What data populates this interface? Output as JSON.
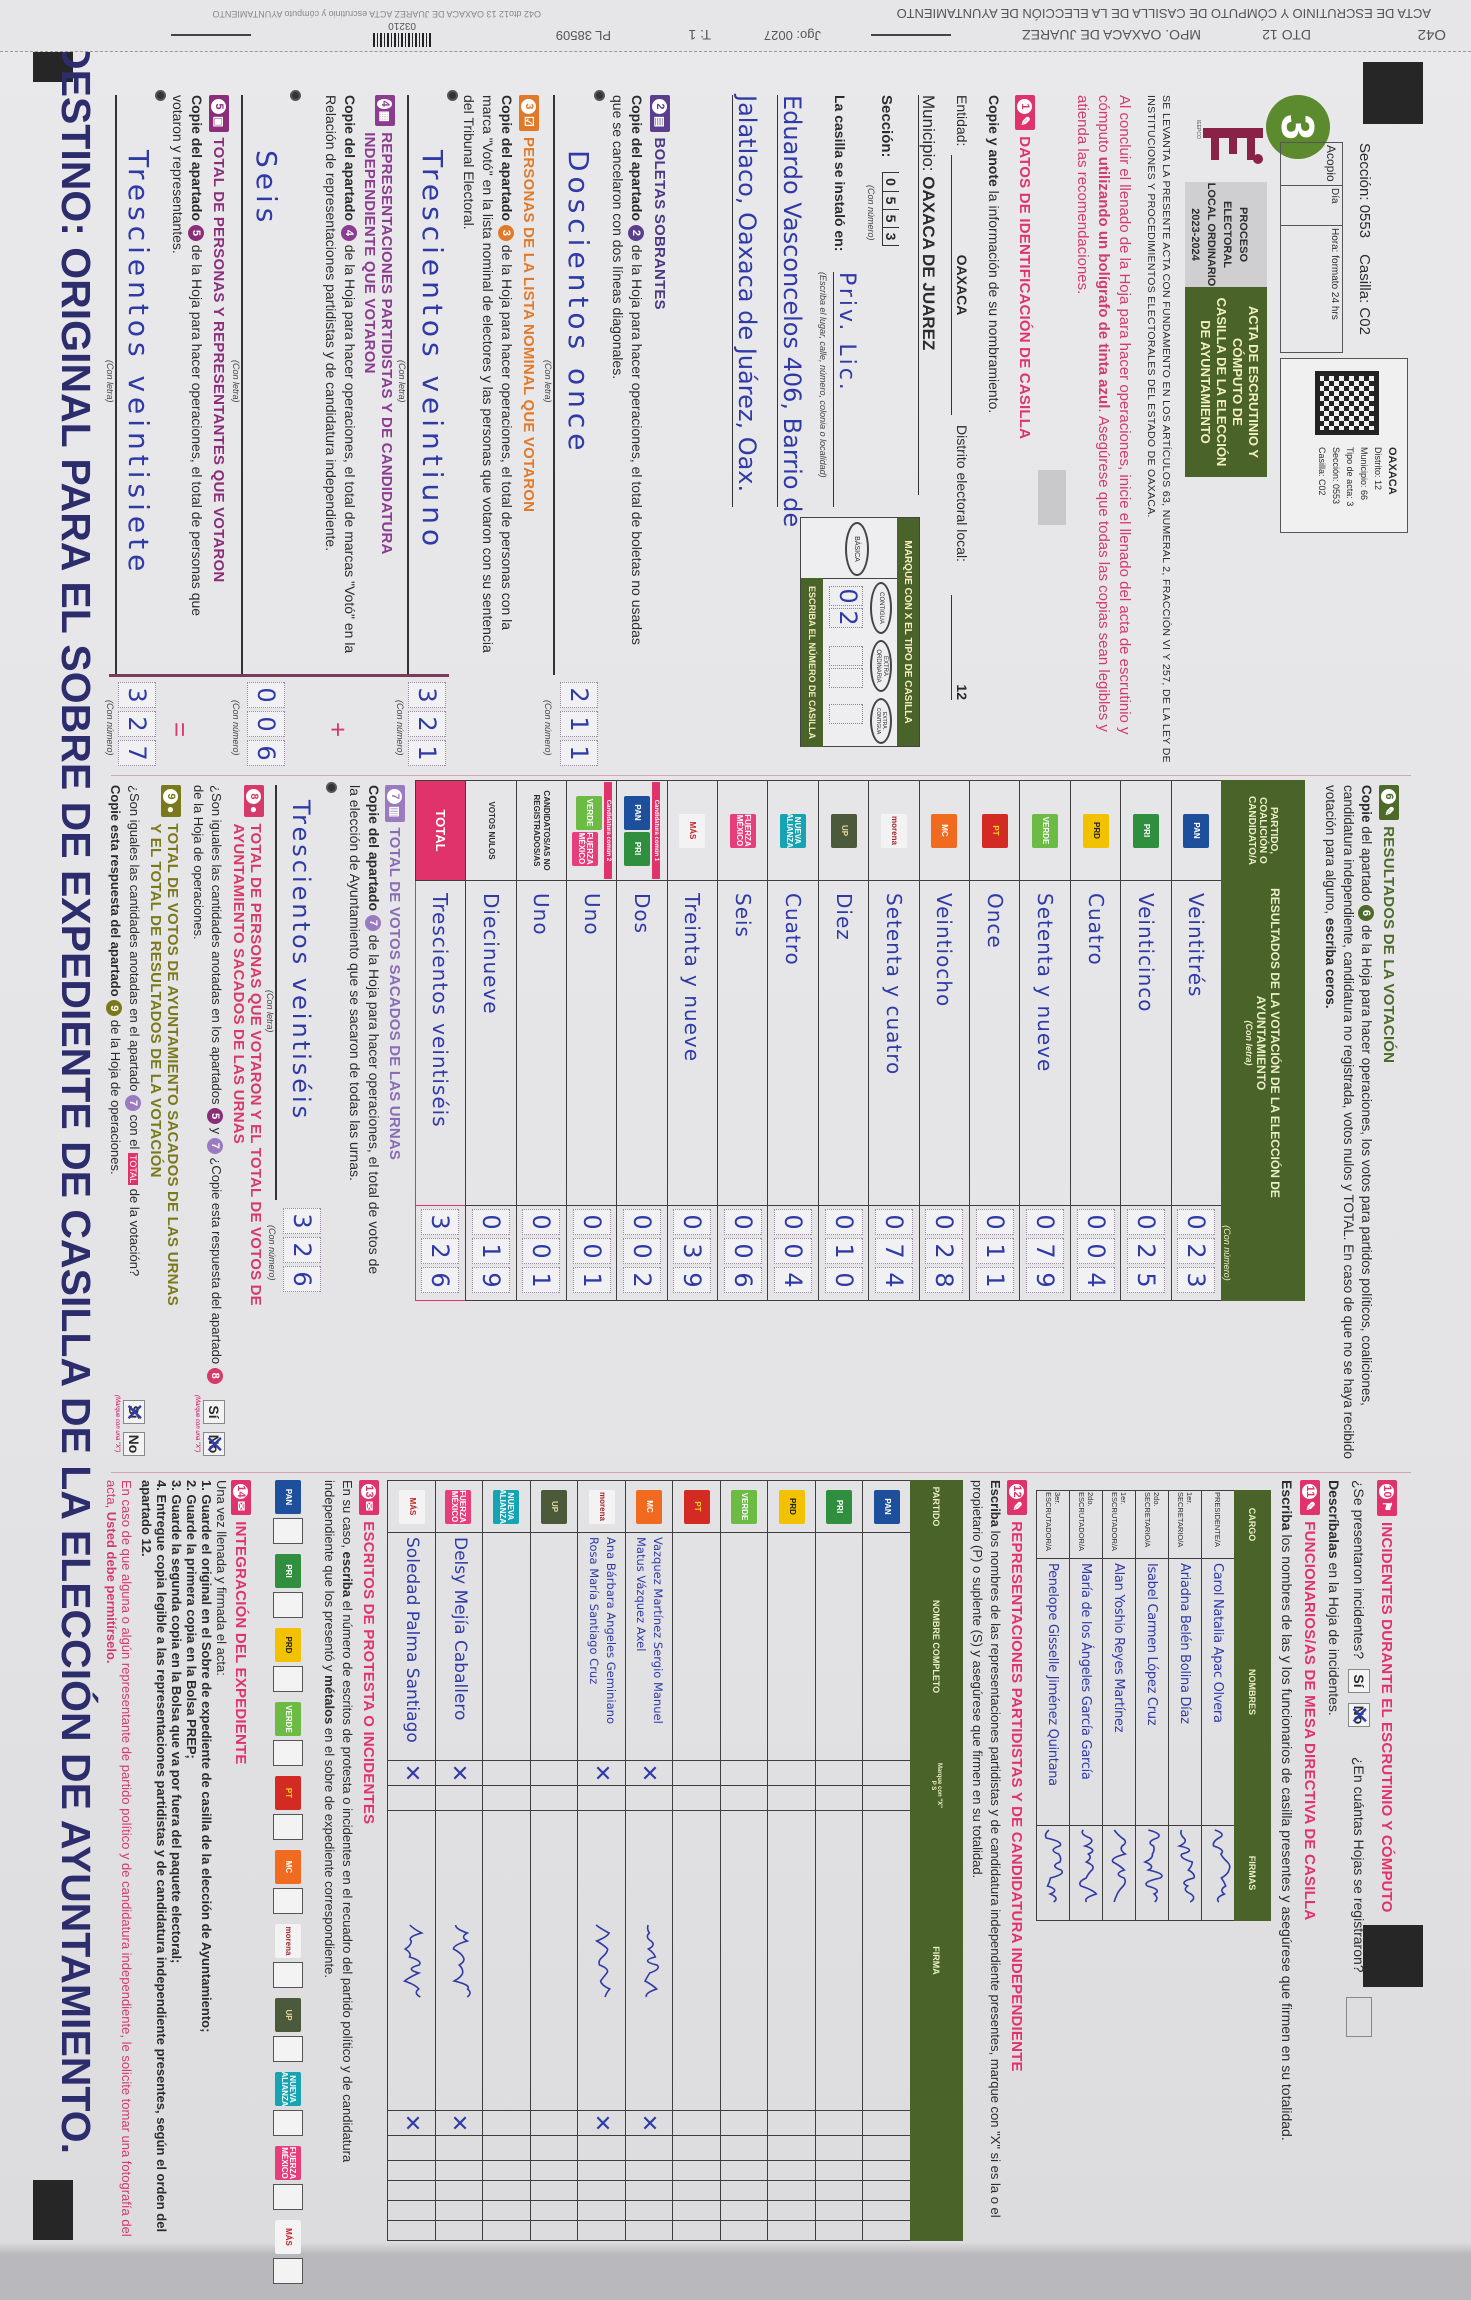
{
  "strip": {
    "title": "ACTA DE ESCRUTINIO Y CÓMPUTO DE CASILLA DE LA ELECCIÓN DE AYUNTAMIENTO",
    "small": "O42 dto12 13 OAXACA DE JUAREZ ACTA escrutinio y cómputo AYUNTAMIENTO",
    "code": "O42",
    "dto": "DTO 12",
    "mpo": "MPO. OAXACA DE JUAREZ",
    "jgo": "Jgo: 0027",
    "t": "T: 1",
    "pl": "PL 38509",
    "barcode": "03210"
  },
  "header": {
    "badge": "3",
    "logo": "IEEPCO",
    "seccion": "Sección: 0553",
    "casilla": "Casilla: C02",
    "acopio": "Acopio",
    "dia": "Día",
    "hora": "Hora: formato 24 hrs",
    "proceso": [
      "PROCESO ELECTORAL",
      "LOCAL ORDINARIO",
      "2023-2024"
    ],
    "title": [
      "ACTA DE ESCRUTINIO Y CÓMPUTO DE",
      "CASILLA DE LA ELECCIÓN",
      "DE AYUNTAMIENTO"
    ],
    "qr_info": [
      "OAXACA",
      "Distrito: 12",
      "Municipio: 66",
      "Tipo de acta: 3",
      "Sección: 0553",
      "Casilla: C02"
    ],
    "legal": "SE LEVANTA LA PRESENTE ACTA CON FUNDAMENTO EN LOS ARTÍCULOS 63, NUMERAL 2, FRACCIÓN VI Y 257, DE LA LEY DE INSTITUCIONES Y PROCEDIMIENTOS ELECTORALES DEL ESTADO DE OAXACA.",
    "warn_pre": "Al concluir el llenado de la Hoja para hacer operaciones, inicie el llenado del acta de escrutinio y cómputo ",
    "warn_bold": "utilizando un bolígrafo de tinta azul",
    "warn_post": ". Asegúrese que todas las copias sean legibles y atienda las recomendaciones."
  },
  "s1": {
    "num": "1",
    "title": "DATOS DE IDENTIFICACIÓN DE CASILLA",
    "instr_bold": "Copie y anote",
    "instr": " la información de su nombramiento.",
    "entidad_label": "Entidad:",
    "entidad": "OAXACA",
    "distrito_label": "Distrito electoral local:",
    "distrito": "12",
    "municipio_label": "Municipio:",
    "municipio": "OAXACA DE JUAREZ",
    "seccion_label": "Sección:",
    "seccion_digits": [
      "0",
      "5",
      "5",
      "3"
    ],
    "con_numero": "(Con número)",
    "instalo_label": "La casilla se instaló en:",
    "instalo_lines": [
      "Priv. Lic.",
      "Eduardo Vasconcelos 406, Barrio de",
      "Jalatlaco, Oaxaca de Juárez, Oax."
    ],
    "instalo_hint": "(Escriba el lugar, calle, número, colonia o localidad)",
    "tipo_title": "MARQUE CON X EL TIPO DE CASILLA",
    "tipos": [
      "BÁSICA",
      "CONTIGUA",
      "EXTRA ORDINARIA",
      "EXTRA. CONTIGUA"
    ],
    "numero_title": "ESCRIBA EL NÚMERO DE CASILLA",
    "numero_digits": [
      "0",
      "2"
    ]
  },
  "common": {
    "con_letra": "(Con letra)",
    "con_numero": "(Con número)",
    "copie": "Copie del apartado",
    "plus": "+",
    "equals": "=",
    "si": "Sí",
    "no": "No",
    "marque": "(Marque con una \"X\")"
  },
  "s2": {
    "num": "2",
    "title": "BOLETAS SOBRANTES",
    "text": " de la Hoja para hacer operaciones, el total de boletas no usadas que se cancelaron con dos líneas diagonales.",
    "letter": "Doscientos once",
    "digits": [
      "2",
      "1",
      "1"
    ]
  },
  "s3": {
    "num": "3",
    "title": "PERSONAS DE LA LISTA NOMINAL QUE VOTARON",
    "text": " de la Hoja para hacer operaciones, el total de personas con la marca \"Votó\" en la lista nominal de electores y las personas que votaron con su sentencia del Tribunal Electoral.",
    "letter": "Trescientos veintiuno",
    "digits": [
      "3",
      "2",
      "1"
    ]
  },
  "s4": {
    "num": "4",
    "title": "REPRESENTACIONES PARTIDISTAS Y DE CANDIDATURA INDEPENDIENTE QUE VOTARON",
    "text": " de la Hoja para hacer operaciones, el total de marcas \"Votó\" en la Relación de representaciones partidistas y de candidatura independiente.",
    "letter": "Seis",
    "digits": [
      "0",
      "0",
      "6"
    ]
  },
  "s5": {
    "num": "5",
    "title": "TOTAL DE PERSONAS Y REPRESENTANTES QUE VOTARON",
    "text": " de la Hoja para hacer operaciones, el total de personas que votaron y representantes.",
    "letter": "Trescientos veintisiete",
    "digits": [
      "3",
      "2",
      "7"
    ]
  },
  "footer": "DESTINO: ORIGINAL PARA EL SOBRE DE EXPEDIENTE DE CASILLA DE LA ELECCIÓN DE AYUNTAMIENTO.",
  "parties": {
    "PAN": {
      "label": "PAN",
      "bg": "#1d4f9c",
      "fg": "#ffffff"
    },
    "PRI": {
      "label": "PRI",
      "bg": "#2f8f3e",
      "fg": "#ffffff"
    },
    "PRD": {
      "label": "PRD",
      "bg": "#f2c200",
      "fg": "#222222"
    },
    "PVEM": {
      "label": "VERDE",
      "bg": "#6cbb45",
      "fg": "#ffffff"
    },
    "PT": {
      "label": "PT",
      "bg": "#d42a24",
      "fg": "#f6d21a"
    },
    "MC": {
      "label": "MC",
      "bg": "#f06a1f",
      "fg": "#ffffff"
    },
    "MORENA": {
      "label": "morena",
      "bg": "#f3f3f3",
      "fg": "#a0282c"
    },
    "UP": {
      "label": "UP",
      "bg": "#4b5a3a",
      "fg": "#e6d6a0"
    },
    "NA": {
      "label": "NUEVA ALIANZA",
      "bg": "#16a3b3",
      "fg": "#ffffff"
    },
    "FXM": {
      "label": "FUERZA MÉXICO",
      "bg": "#e63e7c",
      "fg": "#ffffff"
    },
    "MAS": {
      "label": "MÁS",
      "bg": "#f3f3f3",
      "fg": "#c0272d"
    }
  },
  "s6": {
    "num": "6",
    "title": "RESULTADOS DE LA VOTACIÓN",
    "text_bold": "Copie",
    "text1": " del apartado ",
    "text2": " de la Hoja para hacer operaciones, los votos para partidos políticos, coaliciones, candidatura independiente, candidatura no registrada, votos nulos y TOTAL. En caso de que no se haya recibido votación para alguno, ",
    "text_bold2": "escriba ceros.",
    "col_party": "PARTIDO, COALICIÓN O CANDIDATO/A",
    "col_result": "RESULTADOS DE LA VOTACIÓN DE LA ELECCIÓN DE AYUNTAMIENTO",
    "col_letter": "(Con letra)",
    "col_number": "(Con número)",
    "rows": [
      {
        "logos": [
          "PAN"
        ],
        "letter": "Veintitrés",
        "digits": [
          "0",
          "2",
          "3"
        ]
      },
      {
        "logos": [
          "PRI"
        ],
        "letter": "Veinticinco",
        "digits": [
          "0",
          "2",
          "5"
        ]
      },
      {
        "logos": [
          "PRD"
        ],
        "letter": "Cuatro",
        "digits": [
          "0",
          "0",
          "4"
        ]
      },
      {
        "logos": [
          "PVEM"
        ],
        "letter": "Setenta y nueve",
        "digits": [
          "0",
          "7",
          "9"
        ]
      },
      {
        "logos": [
          "PT"
        ],
        "letter": "Once",
        "digits": [
          "0",
          "1",
          "1"
        ]
      },
      {
        "logos": [
          "MC"
        ],
        "letter": "Veintiocho",
        "digits": [
          "0",
          "2",
          "8"
        ]
      },
      {
        "logos": [
          "MORENA"
        ],
        "letter": "Setenta y cuatro",
        "digits": [
          "0",
          "7",
          "4"
        ]
      },
      {
        "logos": [
          "UP"
        ],
        "letter": "Diez",
        "digits": [
          "0",
          "1",
          "0"
        ]
      },
      {
        "logos": [
          "NA"
        ],
        "letter": "Cuatro",
        "digits": [
          "0",
          "0",
          "4"
        ]
      },
      {
        "logos": [
          "FXM"
        ],
        "letter": "Seis",
        "digits": [
          "0",
          "0",
          "6"
        ]
      },
      {
        "logos": [
          "MAS"
        ],
        "letter": "Treinta y nueve",
        "digits": [
          "0",
          "3",
          "9"
        ]
      },
      {
        "logos": [
          "PAN",
          "PRI"
        ],
        "tag": "Candidatura común 1",
        "letter": "Dos",
        "digits": [
          "0",
          "0",
          "2"
        ]
      },
      {
        "logos": [
          "PVEM",
          "FXM"
        ],
        "tag": "Candidatura común 2",
        "letter": "Uno",
        "digits": [
          "0",
          "0",
          "1"
        ]
      },
      {
        "label": "CANDIDATOS/AS NO REGISTRADOS/AS",
        "letter": "Uno",
        "digits": [
          "0",
          "0",
          "1"
        ]
      },
      {
        "label": "VOTOS NULOS",
        "letter": "Diecinueve",
        "digits": [
          "0",
          "1",
          "9"
        ]
      },
      {
        "label": "TOTAL",
        "total": true,
        "letter": "Trescientos veintiséis",
        "digits": [
          "3",
          "2",
          "6"
        ]
      }
    ]
  },
  "s7": {
    "num": "7",
    "title": "TOTAL DE VOTOS SACADOS DE LAS URNAS",
    "text": " de la Hoja para hacer operaciones, el total de votos de la elección de Ayuntamiento que se sacaron de todas las urnas.",
    "letter": "Trescientos veintiséis",
    "digits": [
      "3",
      "2",
      "6"
    ]
  },
  "s8": {
    "num": "8",
    "title1": "TOTAL DE PERSONAS QUE VOTARON Y EL TOTAL DE VOTOS DE",
    "title2": "AYUNTAMIENTO SACADOS DE LAS URNAS",
    "q1": "¿Son iguales las cantidades anotadas en los apartados ",
    "q_and": " y ",
    "q2": " ¿Copie esta respuesta del apartado ",
    "q3": " de la Hoja de operaciones.",
    "answer": "No"
  },
  "s9": {
    "num": "9",
    "title1": "TOTAL DE VOTOS DE AYUNTAMIENTO SACADOS DE LAS URNAS",
    "title2": "Y EL TOTAL DE RESULTADOS DE LA VOTACIÓN",
    "q1": "¿Son iguales las cantidades anotadas en el apartado ",
    "q_con": " con el ",
    "q_total": "TOTAL",
    "q2": " de la votación?",
    "q3": "Copie esta respuesta del apartado ",
    "q4": " de la Hoja de operaciones.",
    "answer": "Sí"
  },
  "s10": {
    "num": "10",
    "title": "INCIDENTES DURANTE EL ESCRUTINIO Y CÓMPUTO",
    "question": "¿Se presentaron incidentes?",
    "answer": "No",
    "hojas_q": "¿En cuántas Hojas se registraron?",
    "hojas": "",
    "describe_bold": "Descríbalas",
    "describe": " en la Hoja de incidentes."
  },
  "s11": {
    "num": "11",
    "title": "FUNCIONARIOS/AS DE MESA DIRECTIVA DE CASILLA",
    "text_bold": "Escriba",
    "text": " los nombres de las y los funcionarios de casilla presentes y asegúrese que firmen en su totalidad.",
    "col_cargo": "CARGO",
    "col_nombres": "NOMBRES",
    "col_firmas": "FIRMAS",
    "rows": [
      {
        "cargo": "PRESIDENTE/A",
        "nombre": "Carol Natalia Apac Olvera"
      },
      {
        "cargo": "1er. SECRETARIO/A",
        "nombre": "Ariadna Belén Bolina Díaz"
      },
      {
        "cargo": "2do. SECRETARIO/A",
        "nombre": "Isabel Carmen López Cruz"
      },
      {
        "cargo": "1er. ESCRUTADOR/A",
        "nombre": "Alan Yoshio Reyes Martínez"
      },
      {
        "cargo": "2do. ESCRUTADOR/A",
        "nombre": "María de los Ángeles García García"
      },
      {
        "cargo": "3er. ESCRUTADOR/A",
        "nombre": "Penelope Gisselle Jiménez Quintana"
      }
    ]
  },
  "s12": {
    "num": "12",
    "title": "REPRESENTACIONES PARTIDISTAS Y DE CANDIDATURA INDEPENDIENTE",
    "text_bold": "Escriba",
    "text": " los nombres de las representaciones partidistas y de candidatura independiente presentes, marque con \"X\" si es la o el propietario (P) o suplente (S) y asegúrese que firmen en su totalidad.",
    "col_party": "PARTIDO",
    "col_name": "NOMBRE COMPLETO",
    "col_ps": "Marque con \"X\"",
    "col_p": "P",
    "col_s": "S",
    "col_firma": "FIRMA",
    "rows": [
      {
        "party": "PAN",
        "names": []
      },
      {
        "party": "PRI",
        "names": []
      },
      {
        "party": "PRD",
        "names": []
      },
      {
        "party": "PVEM",
        "names": []
      },
      {
        "party": "PT",
        "names": []
      },
      {
        "party": "MC",
        "names": [
          "Vazquez Martínez Sergio Manuel",
          "Matus Vázquez Axel"
        ],
        "signed": true
      },
      {
        "party": "MORENA",
        "names": [
          "Ana Bárbara Angeles Geminiano",
          "Rosa María Santiago Cruz"
        ],
        "signed": true
      },
      {
        "party": "UP",
        "names": []
      },
      {
        "party": "NA",
        "names": []
      },
      {
        "party": "FXM",
        "names": [
          "Delsy Mejía Caballero"
        ],
        "signed": true
      },
      {
        "party": "MAS",
        "names": [
          "Soledad Palma Santiago"
        ],
        "signed": true
      }
    ]
  },
  "s13": {
    "num": "13",
    "title": "ESCRITOS DE PROTESTA O INCIDENTES",
    "text1": "En su caso, ",
    "text_bold": "escriba",
    "text2": " el número de escritos de protesta o incidentes en el recuadro del partido político y de candidatura independiente que los presentó y ",
    "text_bold2": "métalos",
    "text3": " en el sobre de expediente correspondiente.",
    "parties": [
      "PAN",
      "PRI",
      "PRD",
      "PVEM",
      "PT",
      "MC",
      "MORENA",
      "UP",
      "NA",
      "FXM",
      "MAS"
    ]
  },
  "s14": {
    "num": "14",
    "title": "INTEGRACIÓN DEL EXPEDIENTE",
    "intro": "Una vez llenada y firmada el acta:",
    "steps": [
      "1. Guarde el original en el Sobre de expediente de casilla de la elección de Ayuntamiento;",
      "2. Guarde la primera copia en la Bolsa PREP;",
      "3. Guarde la segunda copia en la Bolsa que va por fuera del paquete electoral;",
      "4. Entregue copia legible a las representaciones partidistas y de candidatura independiente presentes, según el orden del apartado 12."
    ],
    "note": "En caso de que alguna o algún representante de partido político y de candidatura independiente, le solicite tomar una fotografía del acta, ",
    "note_bold": "Usted debe permitírselo."
  },
  "colors": {
    "green": "#4a6328",
    "pink": "#e0336b",
    "blue_ink": "#2f3aa6",
    "purple": "#5b3f8c",
    "orange": "#e07a2a",
    "olive": "#7a7a1a"
  }
}
